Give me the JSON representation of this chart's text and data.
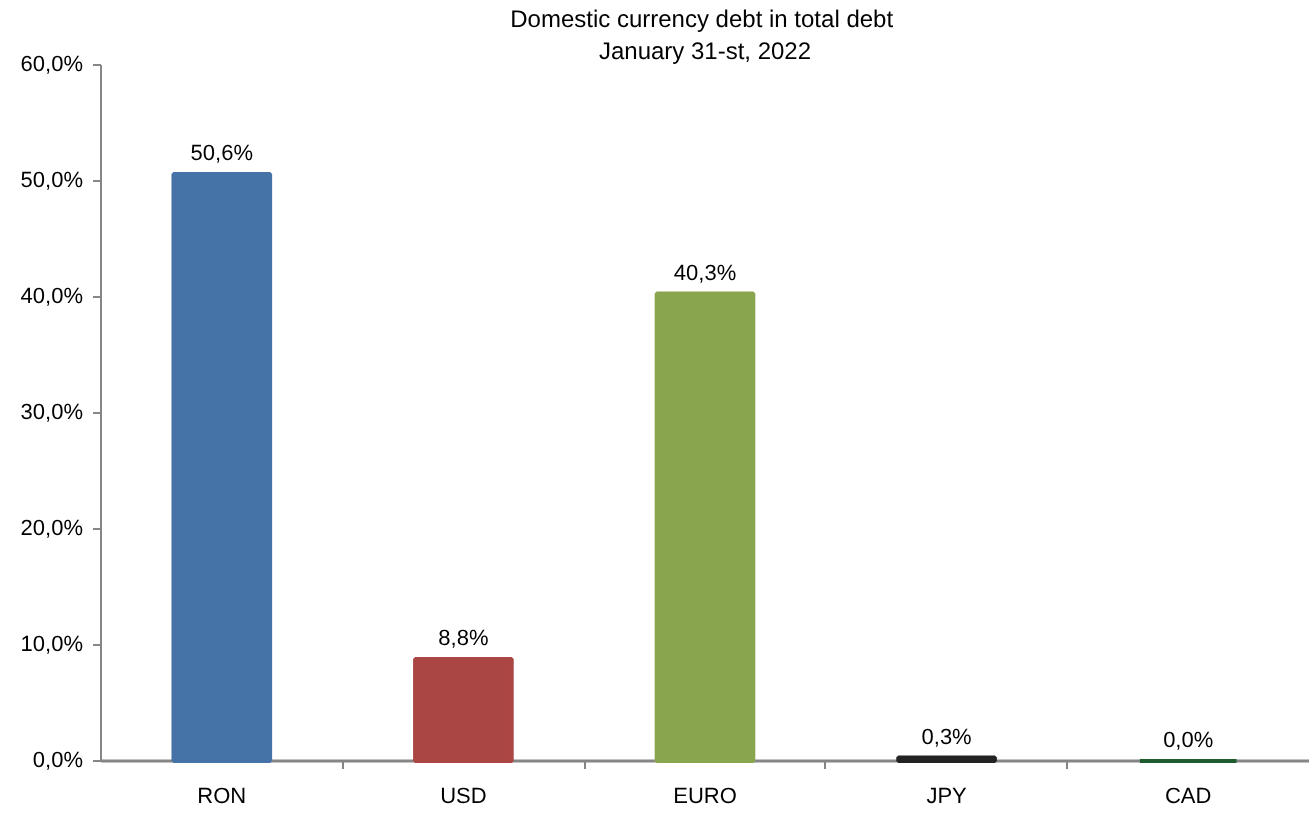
{
  "chart_data": {
    "type": "bar",
    "title": "Domestic currency debt  in total debt",
    "subtitle": "January 31-st, 2022",
    "categories": [
      "RON",
      "USD",
      "EURO",
      "JPY",
      "CAD"
    ],
    "values": [
      50.6,
      8.8,
      40.3,
      0.3,
      0.0
    ],
    "colors": [
      "#4572a7",
      "#aa4643",
      "#89a54e",
      "#222222",
      "#1e5b2e"
    ],
    "value_labels": [
      "50,6%",
      "8,8%",
      "40,3%",
      "0,3%",
      "0,0%"
    ],
    "ylim": [
      0,
      60
    ],
    "yticks": [
      {
        "value": 0,
        "label": "0,0%"
      },
      {
        "value": 10,
        "label": "10,0%"
      },
      {
        "value": 20,
        "label": "20,0%"
      },
      {
        "value": 30,
        "label": "30,0%"
      },
      {
        "value": 40,
        "label": "40,0%"
      },
      {
        "value": 50,
        "label": "50,0%"
      },
      {
        "value": 60,
        "label": "60,0%"
      }
    ],
    "grid": false
  }
}
